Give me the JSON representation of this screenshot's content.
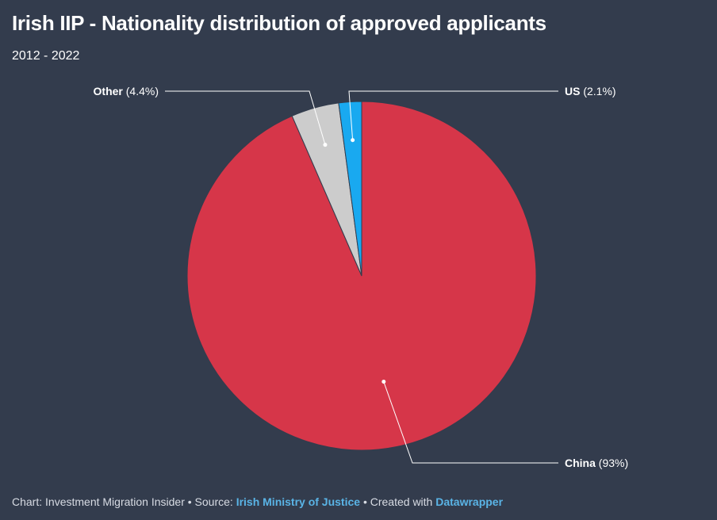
{
  "chart_data": {
    "type": "pie",
    "title": "Irish IIP - Nationality distribution of approved applicants",
    "subtitle": "2012 - 2022",
    "slices": [
      {
        "label": "China",
        "value": 93,
        "display": "(93%)",
        "color": "#d63649"
      },
      {
        "label": "Other",
        "value": 4.4,
        "display": "(4.4%)",
        "color": "#cccccc"
      },
      {
        "label": "US",
        "value": 2.1,
        "display": "(2.1%)",
        "color": "#19a9f0"
      }
    ]
  },
  "footer": {
    "credit": "Chart: Investment Migration Insider • Source: ",
    "source_link": "Irish Ministry of Justice",
    "created_text": " • Created with ",
    "tool_link": "Datawrapper"
  }
}
